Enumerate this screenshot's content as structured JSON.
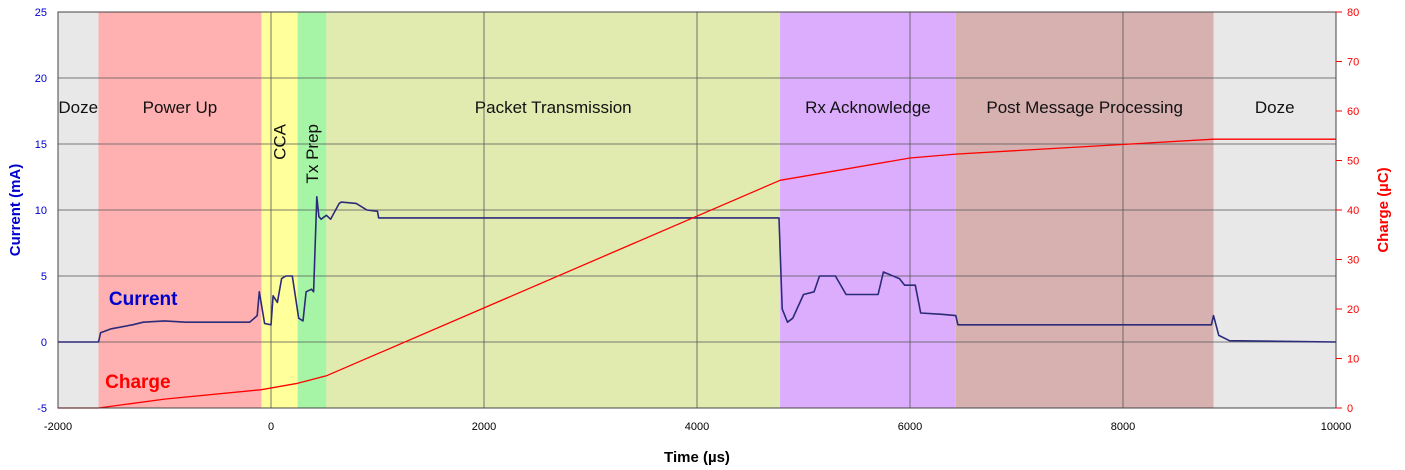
{
  "chart_data": {
    "type": "line",
    "title": "",
    "xlabel": "Time (µs)",
    "ylabel": "Current (mA)",
    "y2label": "Charge (µC)",
    "xlim": [
      -2000,
      10000
    ],
    "ylim": [
      -5,
      25
    ],
    "y2lim": [
      0,
      80
    ],
    "xticks": [
      -2000,
      0,
      2000,
      4000,
      6000,
      8000,
      10000
    ],
    "yticks": [
      -5,
      0,
      5,
      10,
      15,
      20,
      25
    ],
    "y2ticks": [
      0,
      10,
      20,
      30,
      40,
      50,
      60,
      70,
      80
    ],
    "grid": true,
    "colors": {
      "current": "#2b2b7a",
      "charge": "#ff0000",
      "left_axis": "#0000cc",
      "right_axis": "#ff0000",
      "doze": "#e8e8e8",
      "power_up": "#ffb0b0",
      "cca": "#ffff9c",
      "tx_prep": "#a6f5a6",
      "packet_tx": "#e1ebb0",
      "rx_ack": "#dbadfc",
      "post_msg": "#d7b0b0"
    },
    "phases": [
      {
        "label": "Doze",
        "start": -2000,
        "end": -1620,
        "color": "#e8e8e8",
        "vertical": false
      },
      {
        "label": "Power Up",
        "start": -1620,
        "end": -90,
        "color": "#ffb0b0",
        "vertical": false
      },
      {
        "label": "CCA",
        "start": -90,
        "end": 250,
        "color": "#ffff9c",
        "vertical": true
      },
      {
        "label": "Tx Prep",
        "start": 250,
        "end": 520,
        "color": "#a6f5a6",
        "vertical": true
      },
      {
        "label": "Packet Transmission",
        "start": 520,
        "end": 4780,
        "color": "#e1ebb0",
        "vertical": false
      },
      {
        "label": "Rx Acknowledge",
        "start": 4780,
        "end": 6430,
        "color": "#dbadfc",
        "vertical": false
      },
      {
        "label": "Post Message Processing",
        "start": 6430,
        "end": 8850,
        "color": "#d7b0b0",
        "vertical": false
      },
      {
        "label": "Doze",
        "start": 8850,
        "end": 10000,
        "color": "#e8e8e8",
        "vertical": false
      }
    ],
    "series": [
      {
        "name": "Current",
        "axis": "left",
        "x": [
          -2000,
          -1620,
          -1600,
          -1500,
          -1300,
          -1200,
          -1000,
          -800,
          -200,
          -130,
          -110,
          -60,
          0,
          20,
          60,
          100,
          140,
          200,
          260,
          300,
          330,
          380,
          400,
          430,
          450,
          470,
          520,
          560,
          640,
          660,
          800,
          900,
          1000,
          1010,
          2000,
          3000,
          4000,
          4770,
          4780,
          4800,
          4850,
          4900,
          5000,
          5100,
          5150,
          5300,
          5400,
          5700,
          5750,
          5900,
          5950,
          6050,
          6100,
          6300,
          6430,
          6450,
          7000,
          8000,
          8830,
          8850,
          8900,
          9000,
          10000
        ],
        "y": [
          0,
          0,
          0.7,
          1.0,
          1.3,
          1.5,
          1.6,
          1.5,
          1.5,
          2.0,
          3.8,
          1.4,
          1.3,
          3.5,
          3.0,
          4.8,
          5.0,
          5.0,
          1.8,
          1.6,
          3.8,
          4.0,
          3.8,
          11.0,
          9.5,
          9.3,
          9.6,
          9.3,
          10.5,
          10.6,
          10.5,
          10.0,
          9.9,
          9.4,
          9.4,
          9.4,
          9.4,
          9.4,
          7.0,
          2.5,
          1.5,
          1.8,
          3.6,
          3.8,
          5.0,
          5.0,
          3.6,
          3.6,
          5.3,
          4.8,
          4.3,
          4.3,
          2.2,
          2.1,
          2.0,
          1.3,
          1.3,
          1.3,
          1.3,
          2.0,
          0.5,
          0.1,
          0
        ]
      },
      {
        "name": "Charge",
        "axis": "right",
        "x": [
          -2000,
          -1620,
          -1000,
          -90,
          250,
          520,
          4780,
          5000,
          6000,
          6430,
          8850,
          10000
        ],
        "y": [
          0,
          0,
          1.8,
          3.7,
          5.0,
          6.5,
          46.0,
          46.8,
          50.5,
          51.3,
          54.3,
          54.3
        ]
      }
    ],
    "series_labels": [
      {
        "text": "Current",
        "x": -1200,
        "y": 2.5,
        "axis": "left"
      },
      {
        "text": "Charge",
        "x": -1250,
        "y": 3.2,
        "axis": "right"
      }
    ]
  }
}
